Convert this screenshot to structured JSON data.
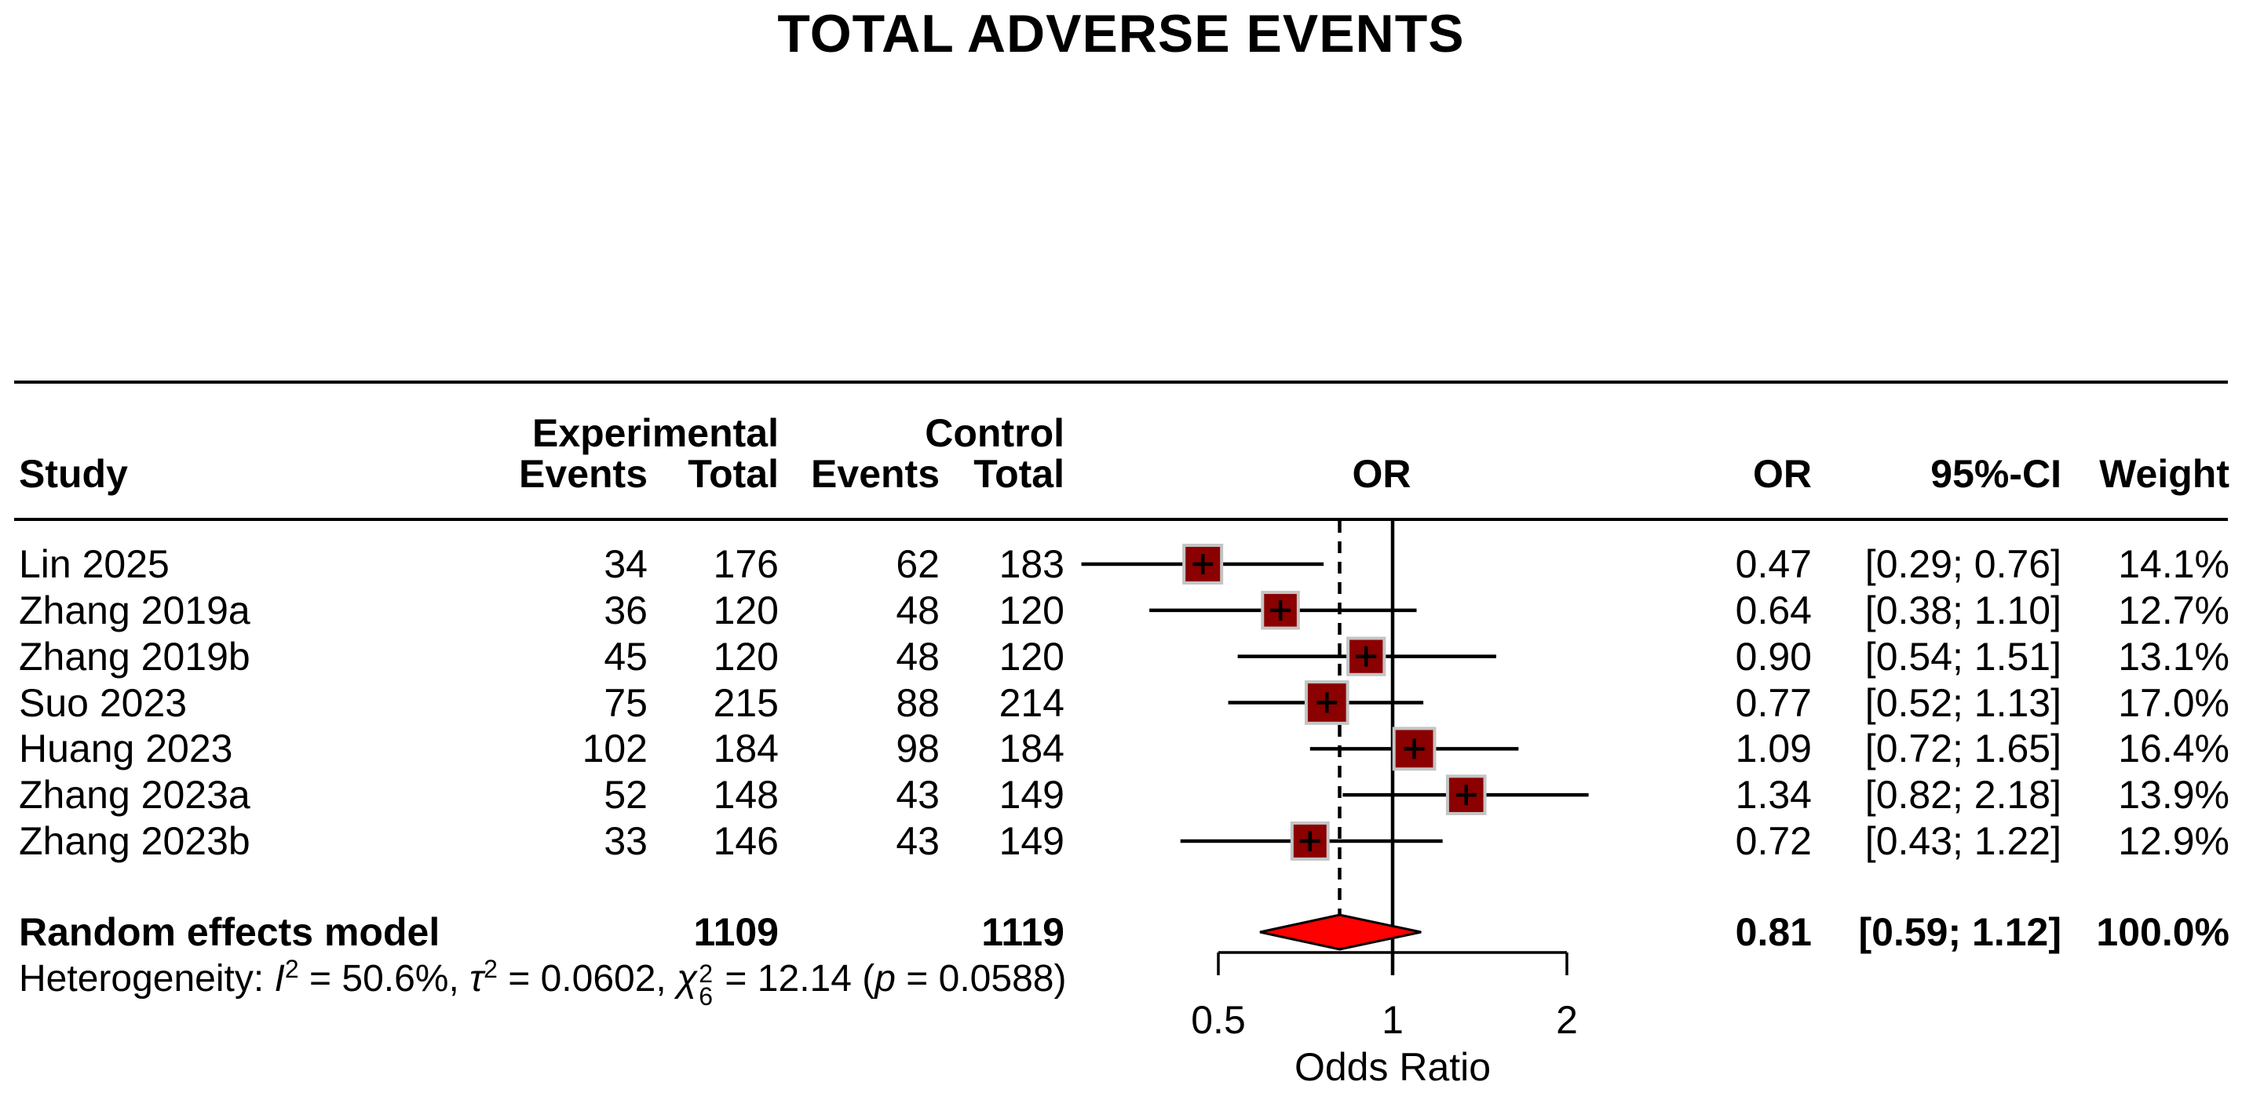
{
  "title": "TOTAL ADVERSE EVENTS",
  "headers": {
    "study": "Study",
    "experimental": "Experimental",
    "control": "Control",
    "exp_events": "Events",
    "exp_total": "Total",
    "ctrl_events": "Events",
    "ctrl_total": "Total",
    "or_plot": "OR",
    "or_col": "OR",
    "ci_col": "95%-CI",
    "weight_col": "Weight"
  },
  "chart_data": {
    "type": "forest",
    "title": "TOTAL ADVERSE EVENTS",
    "x_axis": {
      "label": "Odds Ratio",
      "scale": "log",
      "ticks": [
        "0.5",
        "1",
        "2"
      ],
      "tick_values": [
        0.5,
        1,
        2
      ]
    },
    "reference_or": 1,
    "pooled_dashed_at": 0.81,
    "studies": [
      {
        "name": "Lin 2025",
        "exp_events": "34",
        "exp_total": "176",
        "ctrl_events": "62",
        "ctrl_total": "183",
        "or": 0.47,
        "ci_low": 0.29,
        "ci_high": 0.76,
        "or_label": "0.47",
        "ci_label": "[0.29; 0.76]",
        "weight": "14.1%"
      },
      {
        "name": "Zhang 2019a",
        "exp_events": "36",
        "exp_total": "120",
        "ctrl_events": "48",
        "ctrl_total": "120",
        "or": 0.64,
        "ci_low": 0.38,
        "ci_high": 1.1,
        "or_label": "0.64",
        "ci_label": "[0.38; 1.10]",
        "weight": "12.7%"
      },
      {
        "name": "Zhang 2019b",
        "exp_events": "45",
        "exp_total": "120",
        "ctrl_events": "48",
        "ctrl_total": "120",
        "or": 0.9,
        "ci_low": 0.54,
        "ci_high": 1.51,
        "or_label": "0.90",
        "ci_label": "[0.54; 1.51]",
        "weight": "13.1%"
      },
      {
        "name": "Suo 2023",
        "exp_events": "75",
        "exp_total": "215",
        "ctrl_events": "88",
        "ctrl_total": "214",
        "or": 0.77,
        "ci_low": 0.52,
        "ci_high": 1.13,
        "or_label": "0.77",
        "ci_label": "[0.52; 1.13]",
        "weight": "17.0%"
      },
      {
        "name": "Huang 2023",
        "exp_events": "102",
        "exp_total": "184",
        "ctrl_events": "98",
        "ctrl_total": "184",
        "or": 1.09,
        "ci_low": 0.72,
        "ci_high": 1.65,
        "or_label": "1.09",
        "ci_label": "[0.72; 1.65]",
        "weight": "16.4%"
      },
      {
        "name": "Zhang 2023a",
        "exp_events": "52",
        "exp_total": "148",
        "ctrl_events": "43",
        "ctrl_total": "149",
        "or": 1.34,
        "ci_low": 0.82,
        "ci_high": 2.18,
        "or_label": "1.34",
        "ci_label": "[0.82; 2.18]",
        "weight": "13.9%"
      },
      {
        "name": "Zhang 2023b",
        "exp_events": "33",
        "exp_total": "146",
        "ctrl_events": "43",
        "ctrl_total": "149",
        "or": 0.72,
        "ci_low": 0.43,
        "ci_high": 1.22,
        "or_label": "0.72",
        "ci_label": "[0.43; 1.22]",
        "weight": "12.9%"
      }
    ],
    "pooled": {
      "label": "Random effects model",
      "exp_total": "1109",
      "ctrl_total": "1119",
      "or": 0.81,
      "ci_low": 0.59,
      "ci_high": 1.12,
      "or_label": "0.81",
      "ci_label": "[0.59; 1.12]",
      "weight": "100.0%"
    },
    "heterogeneity": {
      "prefix": "Heterogeneity: ",
      "i_sym": "I",
      "i_sup": "2",
      "seg1": " = 50.6%, ",
      "tau_sym": "τ",
      "tau_sup": "2",
      "seg2": " = 0.0602, ",
      "chi_sym": "χ",
      "chi_sup": "2",
      "chi_sub": "6",
      "seg3": " = 12.14 (",
      "p_sym": "p",
      "seg4": " = 0.0588)"
    },
    "colors": {
      "square_fill": "#8b0000",
      "square_border": "#c4c4c4",
      "diamond_fill": "#ff0000",
      "line": "#000000"
    }
  }
}
